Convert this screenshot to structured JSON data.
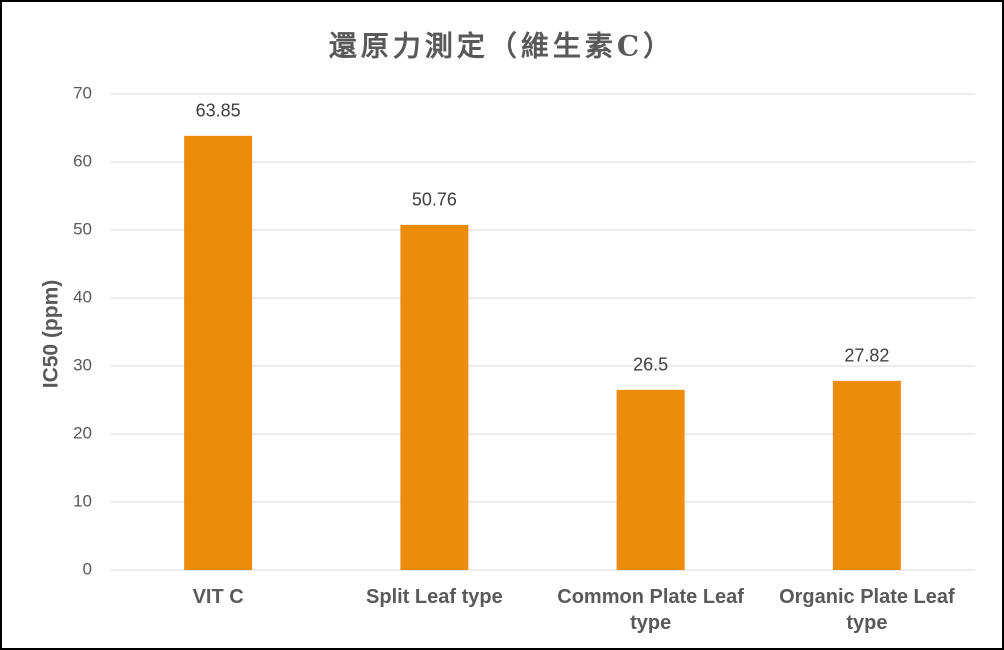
{
  "chart_data": {
    "type": "bar",
    "title": "還原力測定（維生素C）",
    "y_label": "IC50 (ppm)",
    "categories": [
      "VIT C",
      "Split Leaf type",
      "Common Plate Leaf type",
      "Organic Plate Leaf type"
    ],
    "values": [
      63.85,
      50.76,
      26.5,
      27.82
    ],
    "color": "#ed8b0a",
    "ylim": [
      0,
      70
    ],
    "yticks": [
      0,
      10,
      20,
      30,
      40,
      50,
      60,
      70
    ],
    "grid": true
  }
}
